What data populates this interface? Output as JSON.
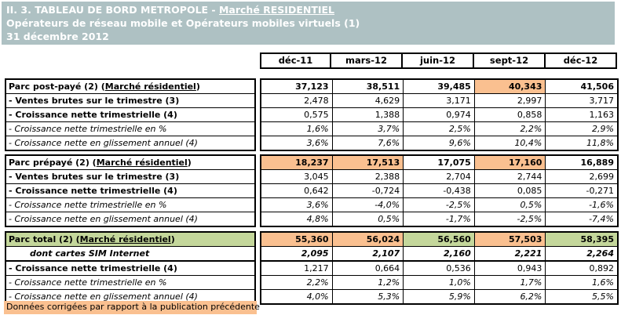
{
  "title": {
    "line1_prefix": "II. 3. TABLEAU DE BORD METROPOLE - ",
    "line1_underlined": "Marché RESIDENTIEL",
    "line2": "Opérateurs de réseau mobile et Opérateurs mobiles virtuels (1)",
    "line3": "31 décembre 2012"
  },
  "columns": [
    "déc-11",
    "mars-12",
    "juin-12",
    "sept-12",
    "déc-12"
  ],
  "colors": {
    "title_band_bg": "#AEC1C3",
    "title_text": "#FFFFFF",
    "highlight_orange": "#FAC090",
    "highlight_green": "#C4D79B",
    "grid_border": "#000000"
  },
  "blocks": [
    {
      "name": "parc-post-paye",
      "rows": [
        {
          "label_prefix": "Parc post-payé (2) (",
          "label_u": "Marché résidentiel",
          "label_suffix": ")",
          "values": [
            "37,123",
            "38,511",
            "39,485",
            "40,343",
            "41,506"
          ]
        },
        {
          "label": "- Ventes brutes sur le trimestre (3)",
          "values": [
            "2,478",
            "4,629",
            "3,171",
            "2,997",
            "3,717"
          ]
        },
        {
          "label": "- Croissance nette trimestrielle (4)",
          "values": [
            "0,575",
            "1,388",
            "0,974",
            "0,858",
            "1,163"
          ]
        },
        {
          "label": "- Croissance nette trimestrielle en %",
          "values": [
            "1,6%",
            "3,7%",
            "2,5%",
            "2,2%",
            "2,9%"
          ]
        },
        {
          "label": "- Croissance nette en glissement annuel (4)",
          "values": [
            "3,6%",
            "7,6%",
            "9,6%",
            "10,4%",
            "11,8%"
          ]
        }
      ]
    },
    {
      "name": "parc-prepaye",
      "rows": [
        {
          "label_prefix": "Parc prépayé (2) (",
          "label_u": "Marché résidentiel",
          "label_suffix": ")",
          "values": [
            "18,237",
            "17,513",
            "17,075",
            "17,160",
            "16,889"
          ]
        },
        {
          "label": "- Ventes brutes sur le trimestre (3)",
          "values": [
            "3,045",
            "2,388",
            "2,704",
            "2,744",
            "2,699"
          ]
        },
        {
          "label": "- Croissance nette trimestrielle (4)",
          "values": [
            "0,642",
            "-0,724",
            "-0,438",
            "0,085",
            "-0,271"
          ]
        },
        {
          "label": "- Croissance nette trimestrielle en %",
          "values": [
            "3,6%",
            "-4,0%",
            "-2,5%",
            "0,5%",
            "-1,6%"
          ]
        },
        {
          "label": "- Croissance nette en glissement annuel (4)",
          "values": [
            "4,8%",
            "0,5%",
            "-1,7%",
            "-2,5%",
            "-7,4%"
          ]
        }
      ]
    },
    {
      "name": "parc-total",
      "rows": [
        {
          "label_prefix": "Parc total (2) (",
          "label_u": "Marché résidentiel",
          "label_suffix": ")",
          "values": [
            "55,360",
            "56,024",
            "56,560",
            "57,503",
            "58,395"
          ]
        },
        {
          "label": "dont cartes SIM Internet",
          "values": [
            "2,095",
            "2,107",
            "2,160",
            "2,221",
            "2,264"
          ]
        },
        {
          "label": "- Croissance nette trimestrielle (4)",
          "values": [
            "1,217",
            "0,664",
            "0,536",
            "0,943",
            "0,892"
          ]
        },
        {
          "label": "- Croissance nette trimestrielle en %",
          "values": [
            "2,2%",
            "1,2%",
            "1,0%",
            "1,7%",
            "1,6%"
          ]
        },
        {
          "label": "- Croissance nette en glissement annuel (4)",
          "values": [
            "4,0%",
            "5,3%",
            "5,9%",
            "6,2%",
            "5,5%"
          ]
        }
      ]
    }
  ],
  "footnote": "Données corrigées par rapport à la publication précédente"
}
